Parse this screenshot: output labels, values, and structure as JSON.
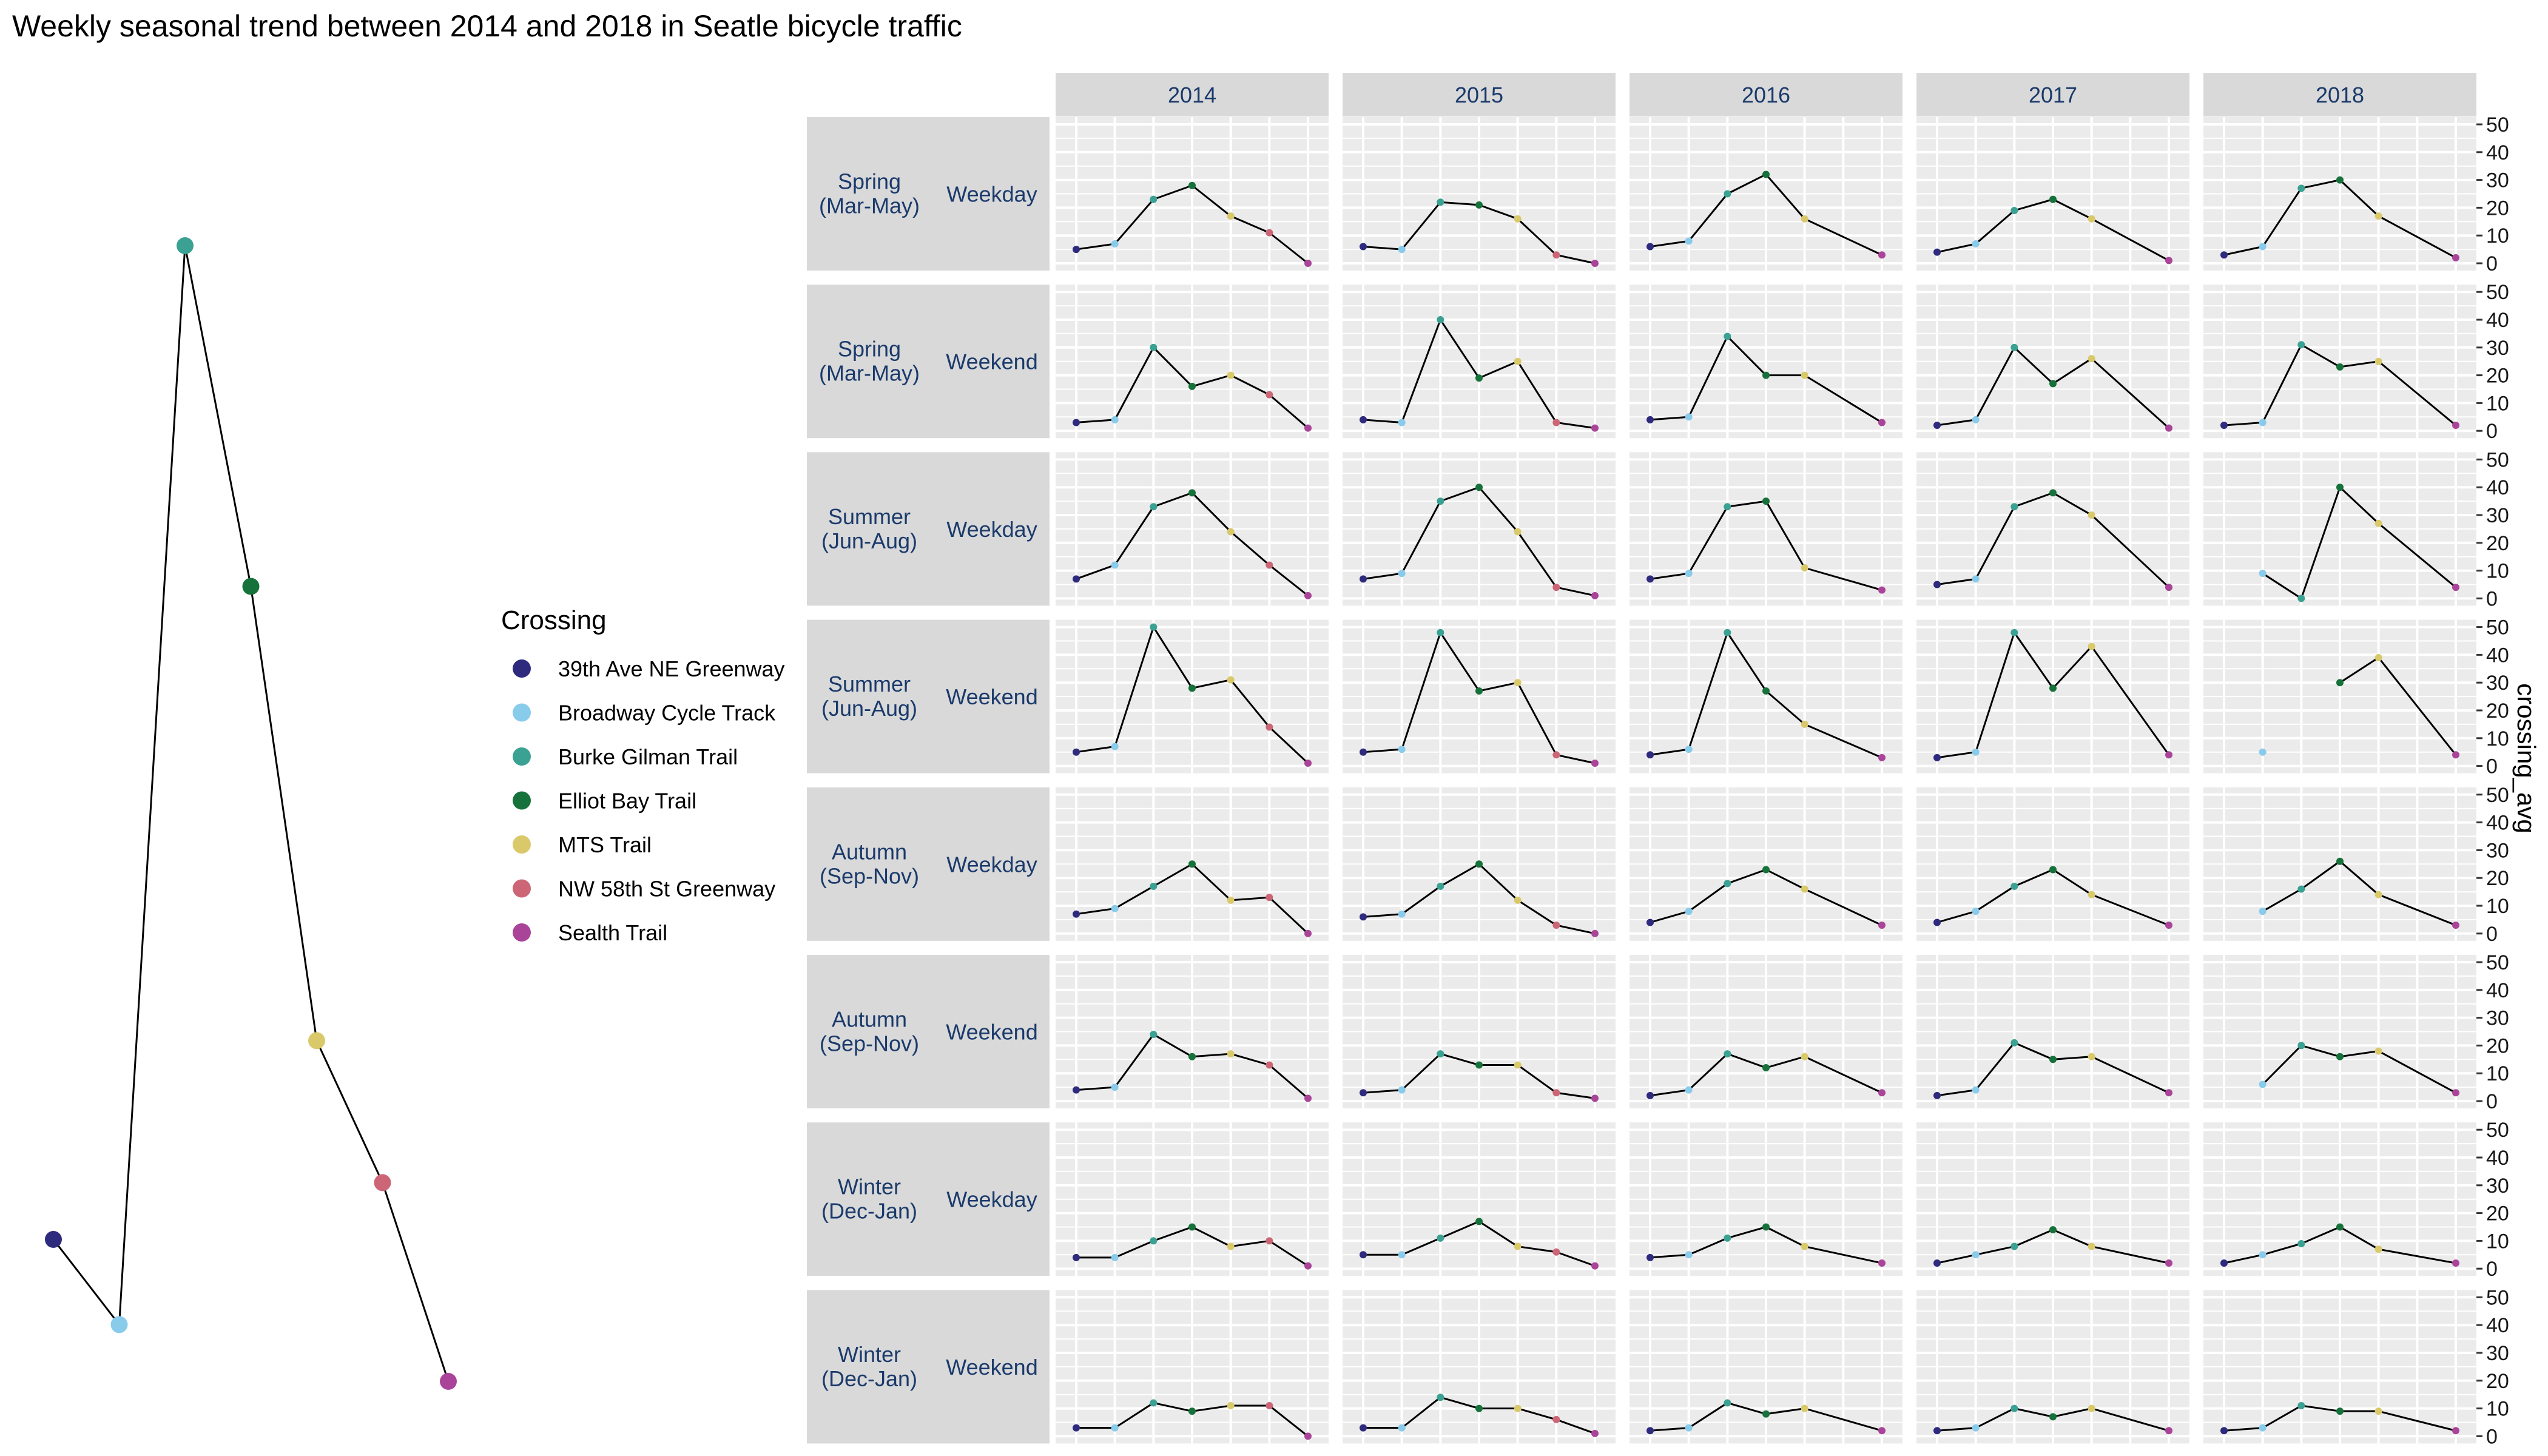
{
  "chart_data": {
    "type": "line",
    "title": "Weekly seasonal trend between 2014 and 2018 in Seatle bicycle traffic",
    "ylabel": "crossing_avg",
    "ylim": [
      0,
      50
    ],
    "yticks": [
      "50",
      "40",
      "30",
      "20",
      "10",
      "0"
    ],
    "legend": {
      "title": "Crossing",
      "placement": "left",
      "entries": [
        "39th Ave NE Greenway",
        "Broadway Cycle Track",
        "Burke Gilman Trail",
        "Elliot Bay Trail",
        "MTS Trail",
        "NW 58th St Greenway",
        "Sealth Trail"
      ],
      "colors": [
        "#2e2a7d",
        "#89cbeb",
        "#3aa193",
        "#16713a",
        "#d9c96b",
        "#cc6677",
        "#aa4499"
      ]
    },
    "overview_values": [
      5,
      2,
      40,
      28,
      12,
      7,
      0
    ],
    "years": [
      "2014",
      "2015",
      "2016",
      "2017",
      "2018"
    ],
    "rows": [
      {
        "season": "Spring\n(Mar-May)",
        "day": "Weekday"
      },
      {
        "season": "Spring\n(Mar-May)",
        "day": "Weekend"
      },
      {
        "season": "Summer\n(Jun-Aug)",
        "day": "Weekday"
      },
      {
        "season": "Summer\n(Jun-Aug)",
        "day": "Weekend"
      },
      {
        "season": "Autumn\n(Sep-Nov)",
        "day": "Weekday"
      },
      {
        "season": "Autumn\n(Sep-Nov)",
        "day": "Weekend"
      },
      {
        "season": "Winter\n(Dec-Jan)",
        "day": "Weekday"
      },
      {
        "season": "Winter\n(Dec-Jan)",
        "day": "Weekend"
      }
    ],
    "series": [
      [
        [
          5,
          7,
          23,
          28,
          17,
          11,
          0
        ],
        [
          6,
          5,
          22,
          21,
          16,
          3,
          0
        ],
        [
          6,
          8,
          25,
          32,
          16,
          null,
          3
        ],
        [
          4,
          7,
          19,
          23,
          16,
          null,
          1
        ],
        [
          3,
          6,
          27,
          30,
          17,
          null,
          2
        ]
      ],
      [
        [
          3,
          4,
          30,
          16,
          20,
          13,
          1
        ],
        [
          4,
          3,
          40,
          19,
          25,
          3,
          1
        ],
        [
          4,
          5,
          34,
          20,
          20,
          null,
          3
        ],
        [
          2,
          4,
          30,
          17,
          26,
          null,
          1
        ],
        [
          2,
          3,
          31,
          23,
          25,
          null,
          2
        ]
      ],
      [
        [
          7,
          12,
          33,
          38,
          24,
          12,
          1
        ],
        [
          7,
          9,
          35,
          40,
          24,
          4,
          1
        ],
        [
          7,
          9,
          33,
          35,
          11,
          null,
          3
        ],
        [
          5,
          7,
          33,
          38,
          30,
          null,
          4
        ],
        [
          null,
          9,
          0,
          40,
          27,
          null,
          4
        ]
      ],
      [
        [
          5,
          7,
          50,
          28,
          31,
          14,
          1
        ],
        [
          5,
          6,
          48,
          27,
          30,
          4,
          1
        ],
        [
          4,
          6,
          48,
          27,
          15,
          null,
          3
        ],
        [
          3,
          5,
          48,
          28,
          43,
          null,
          4
        ],
        [
          null,
          5,
          null,
          30,
          39,
          null,
          4
        ]
      ],
      [
        [
          7,
          9,
          17,
          25,
          12,
          13,
          0
        ],
        [
          6,
          7,
          17,
          25,
          12,
          3,
          0
        ],
        [
          4,
          8,
          18,
          23,
          16,
          null,
          3
        ],
        [
          4,
          8,
          17,
          23,
          14,
          null,
          3
        ],
        [
          null,
          8,
          16,
          26,
          14,
          null,
          3
        ]
      ],
      [
        [
          4,
          5,
          24,
          16,
          17,
          13,
          1
        ],
        [
          3,
          4,
          17,
          13,
          13,
          3,
          1
        ],
        [
          2,
          4,
          17,
          12,
          16,
          null,
          3
        ],
        [
          2,
          4,
          21,
          15,
          16,
          null,
          3
        ],
        [
          null,
          6,
          20,
          16,
          18,
          null,
          3
        ]
      ],
      [
        [
          4,
          4,
          10,
          15,
          8,
          10,
          1
        ],
        [
          5,
          5,
          11,
          17,
          8,
          6,
          1
        ],
        [
          4,
          5,
          11,
          15,
          8,
          null,
          2
        ],
        [
          2,
          5,
          8,
          14,
          8,
          null,
          2
        ],
        [
          2,
          5,
          9,
          15,
          7,
          null,
          2
        ]
      ],
      [
        [
          3,
          3,
          12,
          9,
          11,
          11,
          0
        ],
        [
          3,
          3,
          14,
          10,
          10,
          6,
          1
        ],
        [
          2,
          3,
          12,
          8,
          10,
          null,
          2
        ],
        [
          2,
          3,
          10,
          7,
          10,
          null,
          2
        ],
        [
          2,
          3,
          11,
          9,
          9,
          null,
          2
        ]
      ]
    ]
  }
}
